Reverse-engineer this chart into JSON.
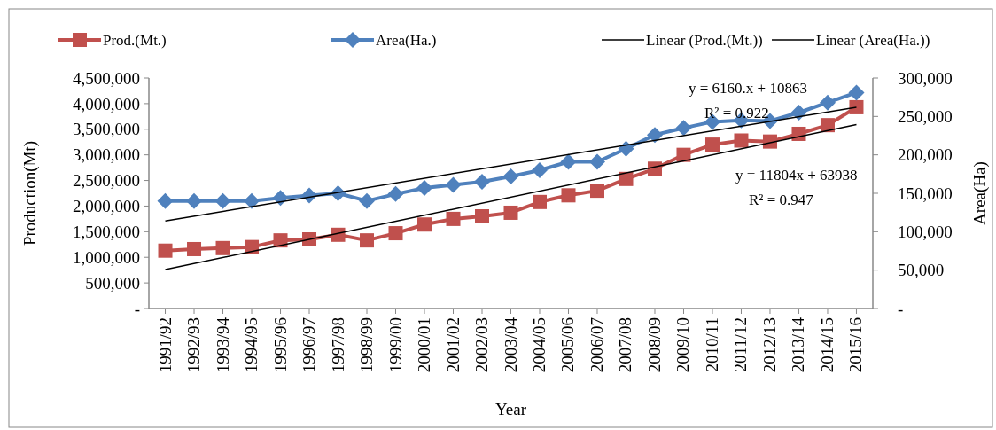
{
  "chart_data": {
    "type": "line",
    "xlabel": "Year",
    "ylabel": "Production(Mt)",
    "y2label": "Area(Ha)",
    "categories": [
      "1991/92",
      "1992/93",
      "1993/94",
      "1994/95",
      "1995/96",
      "1996/97",
      "1997/98",
      "1998/99",
      "1999/00",
      "2000/01",
      "2001/02",
      "2002/03",
      "2003/04",
      "2004/05",
      "2005/06",
      "2006/07",
      "2007/08",
      "2008/09",
      "2009/10",
      "2010/11",
      "2011/12",
      "2012/13",
      "2013/14",
      "2014/15",
      "2015/16"
    ],
    "series": [
      {
        "name": "Prod.(Mt.)",
        "color": "#c0504d",
        "marker": "square",
        "values": [
          1130000,
          1160000,
          1180000,
          1200000,
          1330000,
          1350000,
          1440000,
          1330000,
          1470000,
          1640000,
          1750000,
          1800000,
          1870000,
          2080000,
          2210000,
          2300000,
          2530000,
          2730000,
          3000000,
          3200000,
          3280000,
          3260000,
          3410000,
          3580000,
          3930000
        ]
      },
      {
        "name": "Area(Ha.)",
        "color": "#4f81bd",
        "marker": "diamond",
        "axis": "y2",
        "values": [
          140000,
          140000,
          140000,
          140000,
          144000,
          147000,
          150000,
          140000,
          149000,
          157000,
          161000,
          165000,
          172000,
          180000,
          191000,
          191000,
          208000,
          226000,
          235000,
          243000,
          245000,
          244000,
          255000,
          268000,
          281000
        ]
      },
      {
        "name": "Linear (Prod.(Mt.))",
        "color": "#000000",
        "marker": "none",
        "x": [
          "1991/92",
          "2015/16"
        ],
        "values": [
          760000,
          3590000
        ]
      },
      {
        "name": "Linear (Area(Ha.))",
        "color": "#000000",
        "marker": "none",
        "axis": "y2",
        "x": [
          "1991/92",
          "2015/16"
        ],
        "values": [
          114000,
          262000
        ]
      }
    ],
    "ylim": [
      0,
      4500000
    ],
    "yticks": [
      {
        "value": 0,
        "label": "-"
      },
      {
        "value": 500000,
        "label": "500,000"
      },
      {
        "value": 1000000,
        "label": "1,000,000"
      },
      {
        "value": 1500000,
        "label": "1,500,000"
      },
      {
        "value": 2000000,
        "label": "2,000,000"
      },
      {
        "value": 2500000,
        "label": "2,500,000"
      },
      {
        "value": 3000000,
        "label": "3,000,000"
      },
      {
        "value": 3500000,
        "label": "3,500,000"
      },
      {
        "value": 4000000,
        "label": "4,000,000"
      },
      {
        "value": 4500000,
        "label": "4,500,000"
      }
    ],
    "y2lim": [
      0,
      300000
    ],
    "y2ticks": [
      {
        "value": 0,
        "label": "-"
      },
      {
        "value": 50000,
        "label": "50,000"
      },
      {
        "value": 100000,
        "label": "100,000"
      },
      {
        "value": 150000,
        "label": "150,000"
      },
      {
        "value": 200000,
        "label": "200,000"
      },
      {
        "value": 250000,
        "label": "250,000"
      },
      {
        "value": 300000,
        "label": "300,000"
      }
    ],
    "annotations": [
      "y = 6160.x + 10863",
      "R² = 0.922",
      "y = 11804x + 63938",
      "R² = 0.947"
    ],
    "legend": "top",
    "grid": false,
    "line_style": "solid"
  }
}
